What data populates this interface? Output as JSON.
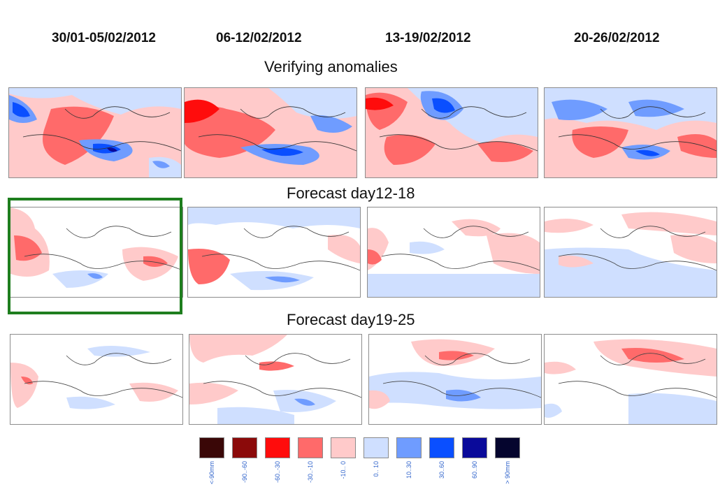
{
  "weeks": [
    "30/01-05/02/2012",
    "06-12/02/2012",
    "13-19/02/2012",
    "20-26/02/2012"
  ],
  "rows": {
    "verifying": "Verifying  anomalies",
    "forecast1": "Forecast day12-18",
    "forecast2": "Forecast day19-25"
  },
  "legend": [
    {
      "label": "<-90mm",
      "color": "#3a0707"
    },
    {
      "label": "-90..-60",
      "color": "#8b0a0a"
    },
    {
      "label": "-60..-30",
      "color": "#ff0c0c"
    },
    {
      "label": "-30..-10",
      "color": "#ff6a6a"
    },
    {
      "label": "-10.. 0",
      "color": "#ffcaca"
    },
    {
      "label": "0.. 10",
      "color": "#cfdfff"
    },
    {
      "label": "10..30",
      "color": "#6f9cff"
    },
    {
      "label": "30..60",
      "color": "#0a4fff"
    },
    {
      "label": "60..90",
      "color": "#0a0a9a"
    },
    {
      "label": "> 90mm",
      "color": "#05052e"
    }
  ]
}
